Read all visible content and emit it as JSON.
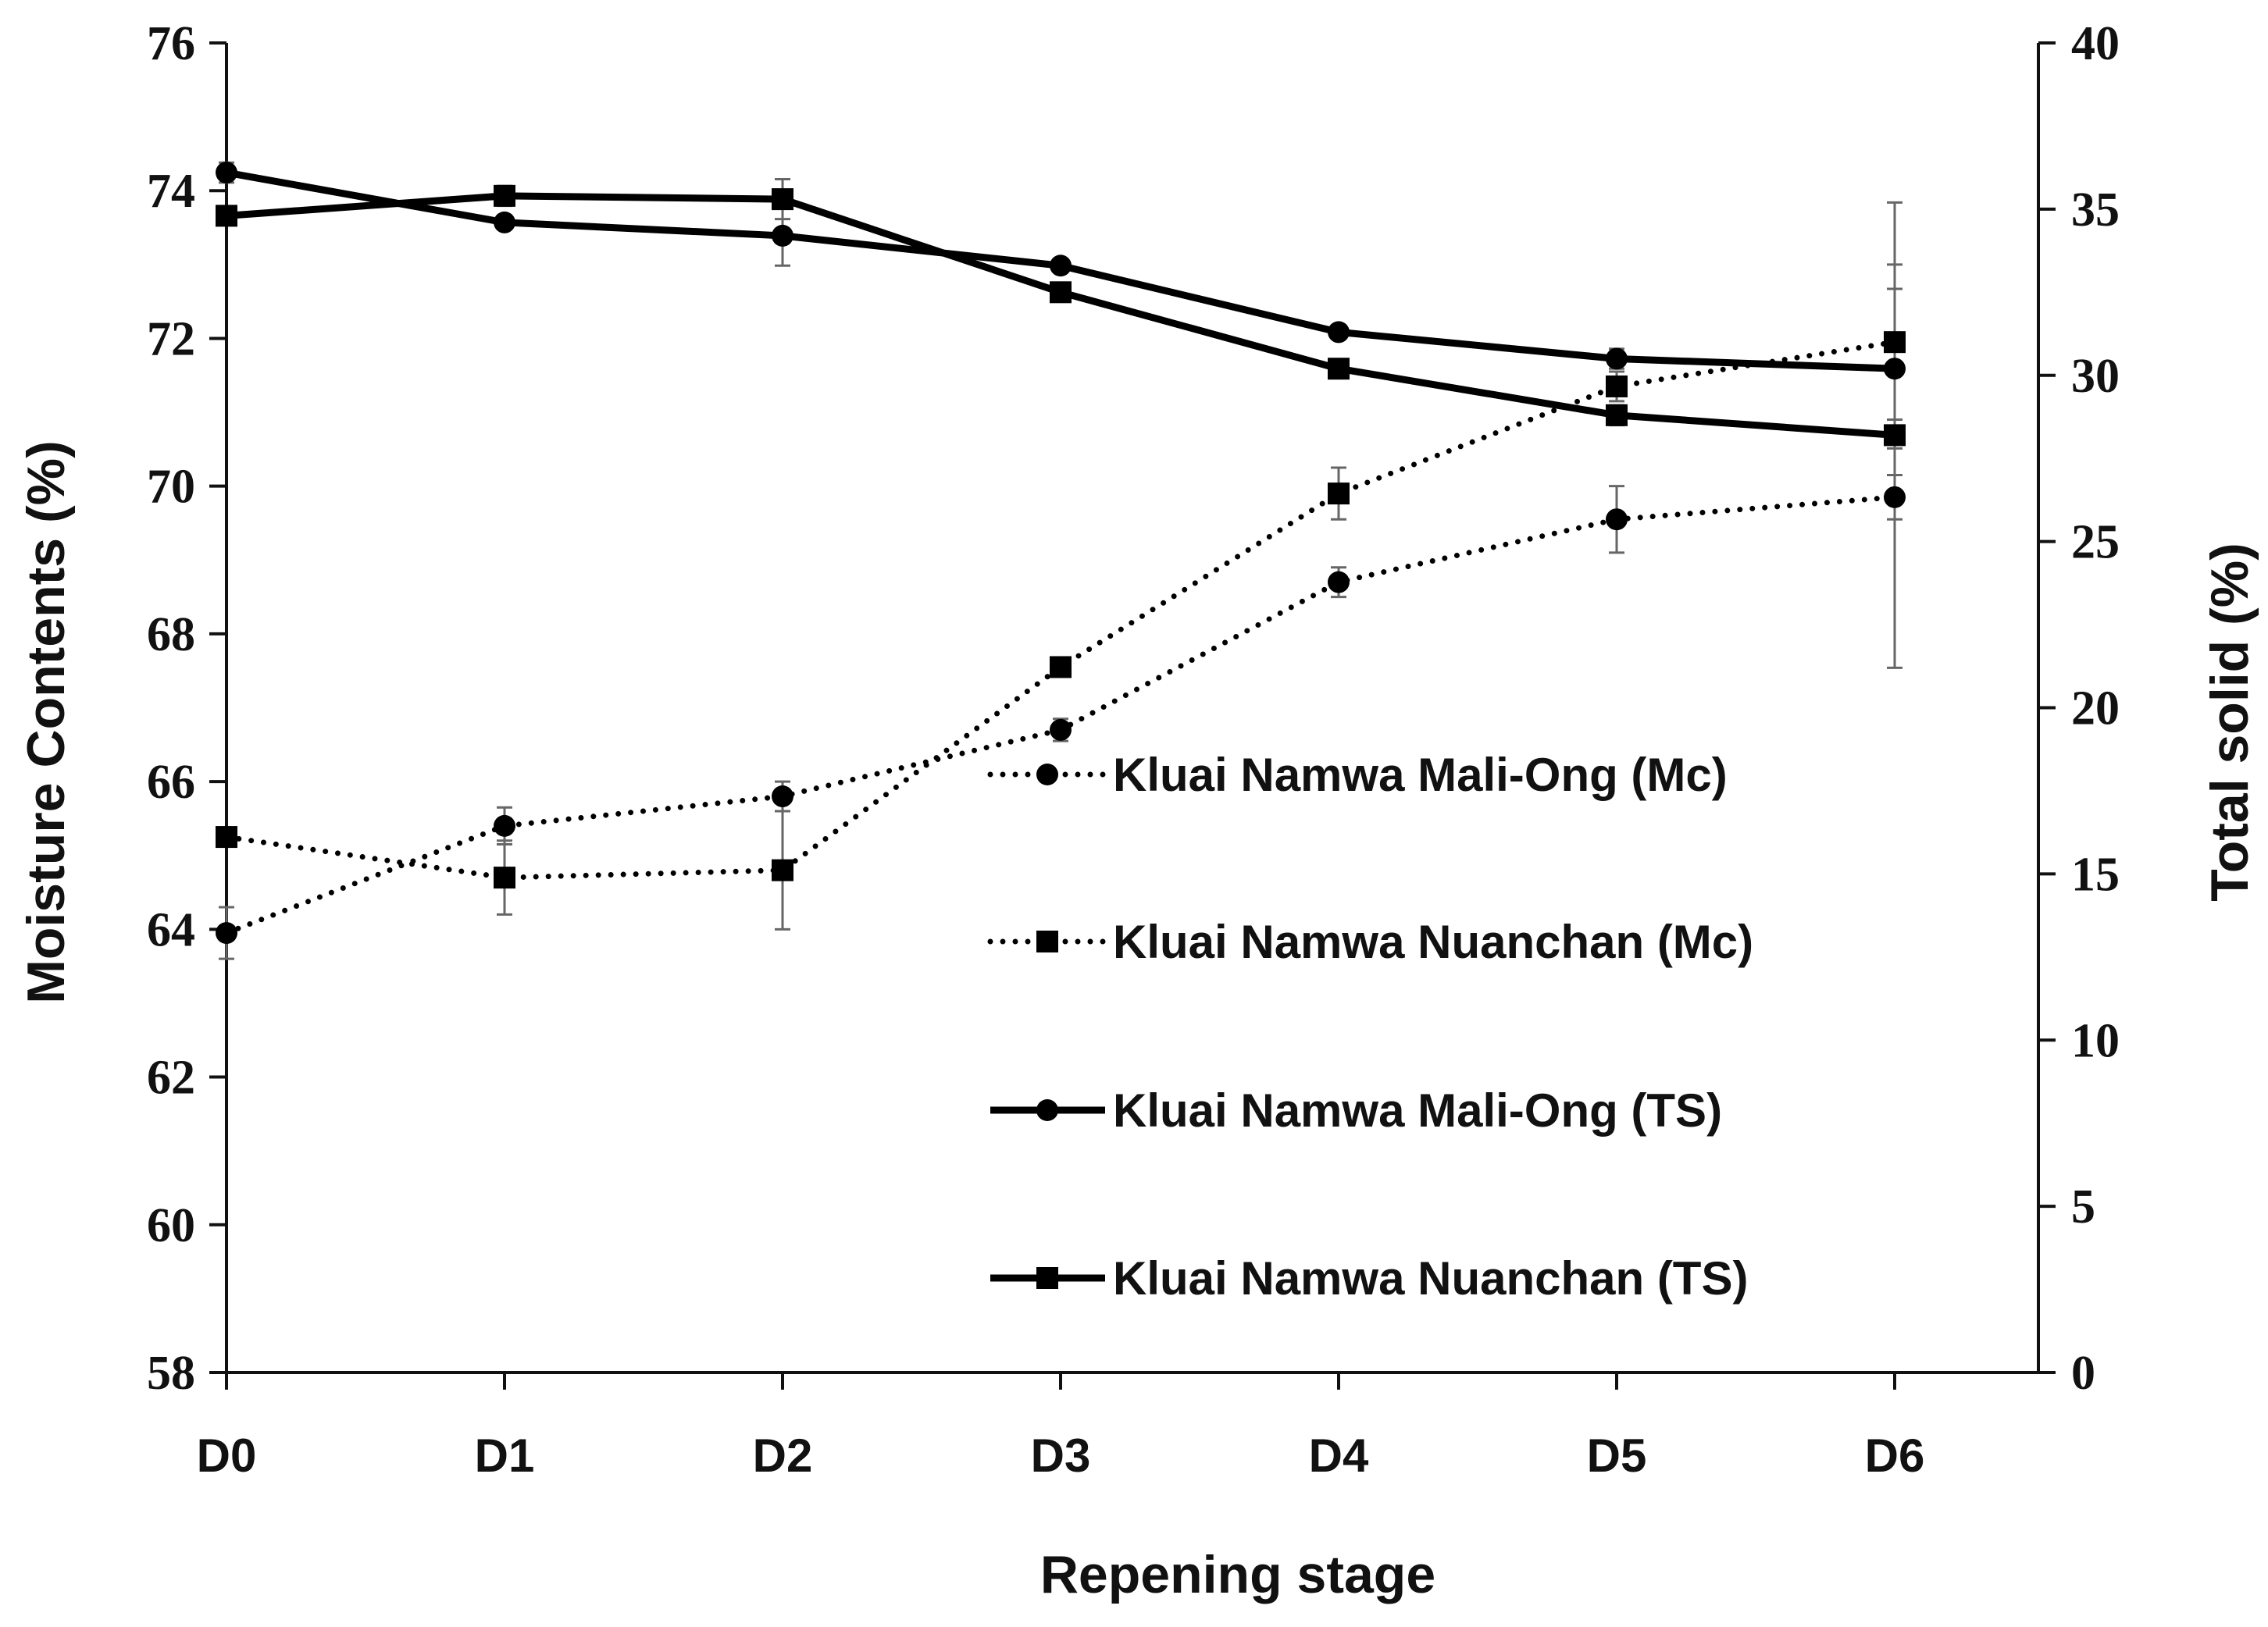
{
  "chart_data": {
    "type": "line",
    "categories": [
      "D0",
      "D1",
      "D2",
      "D3",
      "D4",
      "D5",
      "D6"
    ],
    "xlabel": "Repening stage",
    "ylabel": "Moisture Contents (%)",
    "y2label": "Total solid (%)",
    "ylim": [
      58,
      76
    ],
    "yticks": [
      58,
      60,
      62,
      64,
      66,
      68,
      70,
      72,
      74,
      76
    ],
    "y2lim": [
      0,
      40
    ],
    "y2ticks": [
      0,
      5,
      10,
      15,
      20,
      25,
      30,
      35,
      40
    ],
    "legend_position": "center-right",
    "series": [
      {
        "name": "Kluai Namwa Mali-Ong (Mc)",
        "axis": "left",
        "line": "dotted",
        "marker": "circle",
        "values": [
          63.95,
          65.4,
          65.8,
          66.7,
          68.7,
          69.55,
          69.85
        ],
        "errors": [
          0.35,
          0.25,
          0.2,
          0.15,
          0.2,
          0.45,
          0.3
        ]
      },
      {
        "name": "Kluai Namwa Nuanchan (Mc)",
        "axis": "left",
        "line": "dotted",
        "marker": "square",
        "values": [
          65.25,
          64.7,
          64.8,
          67.55,
          69.9,
          71.35,
          71.95
        ],
        "errors": [
          0.05,
          0.5,
          0.8,
          0.1,
          0.35,
          0.2,
          1.05
        ]
      },
      {
        "name": "Kluai Namwa Mali-Ong (TS)",
        "axis": "right",
        "line": "solid",
        "marker": "circle",
        "values": [
          36.1,
          34.6,
          34.2,
          33.3,
          31.3,
          30.5,
          30.2
        ],
        "errors": [
          0.3,
          0.2,
          0.9,
          0.1,
          0.2,
          0.3,
          2.4
        ]
      },
      {
        "name": "Kluai Namwa Nuanchan (TS)",
        "axis": "right",
        "line": "solid",
        "marker": "square",
        "values": [
          34.8,
          35.4,
          35.3,
          32.5,
          30.2,
          28.8,
          28.2
        ],
        "errors": [
          0.2,
          0.3,
          0.6,
          0.1,
          0.2,
          0.3,
          7.0
        ]
      }
    ]
  }
}
